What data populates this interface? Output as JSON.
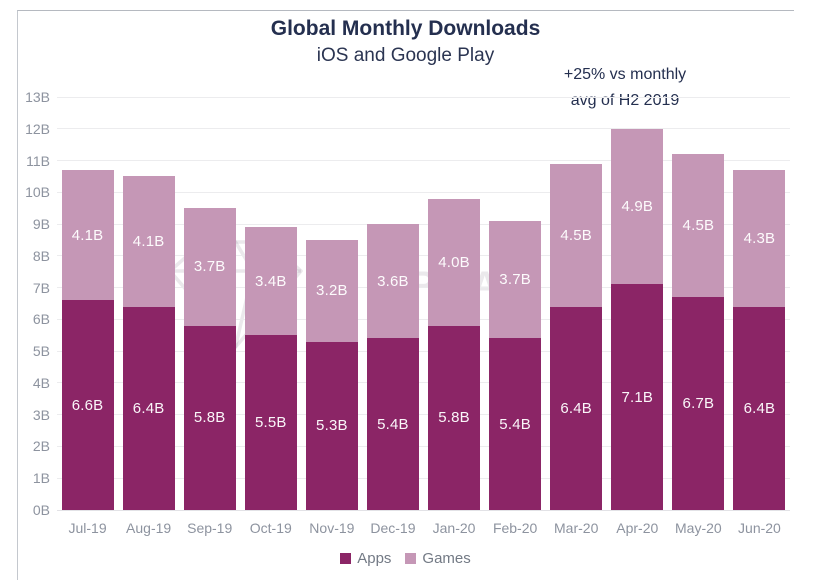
{
  "header": {
    "title": "Global Monthly Downloads",
    "subtitle": "iOS and Google Play"
  },
  "annotation": {
    "lines": [
      "+25% vs monthly",
      "avg of H2 2019"
    ]
  },
  "watermark": {
    "label": "APP ANNIE"
  },
  "chart_data": {
    "type": "bar",
    "stacked": true,
    "title": "Global Monthly Downloads",
    "subtitle": "iOS and Google Play",
    "unit": "B",
    "categories": [
      "Jul-19",
      "Aug-19",
      "Sep-19",
      "Oct-19",
      "Nov-19",
      "Dec-19",
      "Jan-20",
      "Feb-20",
      "Mar-20",
      "Apr-20",
      "May-20",
      "Jun-20"
    ],
    "series": [
      {
        "name": "Apps",
        "color": "#8b2566",
        "values": [
          6.6,
          6.4,
          5.8,
          5.5,
          5.3,
          5.4,
          5.8,
          5.4,
          6.4,
          7.1,
          6.7,
          6.4
        ]
      },
      {
        "name": "Games",
        "color": "#c597b6",
        "values": [
          4.1,
          4.1,
          3.7,
          3.4,
          3.2,
          3.6,
          4.0,
          3.7,
          4.5,
          4.9,
          4.5,
          4.3
        ]
      }
    ],
    "totals": [
      10.7,
      10.5,
      9.5,
      8.9,
      8.5,
      9.0,
      9.8,
      9.1,
      10.9,
      12.0,
      11.2,
      10.7
    ],
    "ylim": [
      0,
      13
    ],
    "ytick_step": 1,
    "ytick_labels": [
      "0B",
      "1B",
      "2B",
      "3B",
      "4B",
      "5B",
      "6B",
      "7B",
      "8B",
      "9B",
      "10B",
      "11B",
      "12B",
      "13B"
    ],
    "grid": "horizontal",
    "legend_position": "bottom",
    "bar_labels": "inside-center",
    "annotation": "+25% vs monthly avg of H2 2019"
  },
  "colors": {
    "apps": "#8b2566",
    "games": "#c597b6",
    "title_text": "#242f4f",
    "axis_text": "#8d939f",
    "legend_text": "#737a85",
    "gridline": "#ececee",
    "card_border": "#b5b9c0",
    "watermark": "rgba(99,85,110,0.13)"
  }
}
